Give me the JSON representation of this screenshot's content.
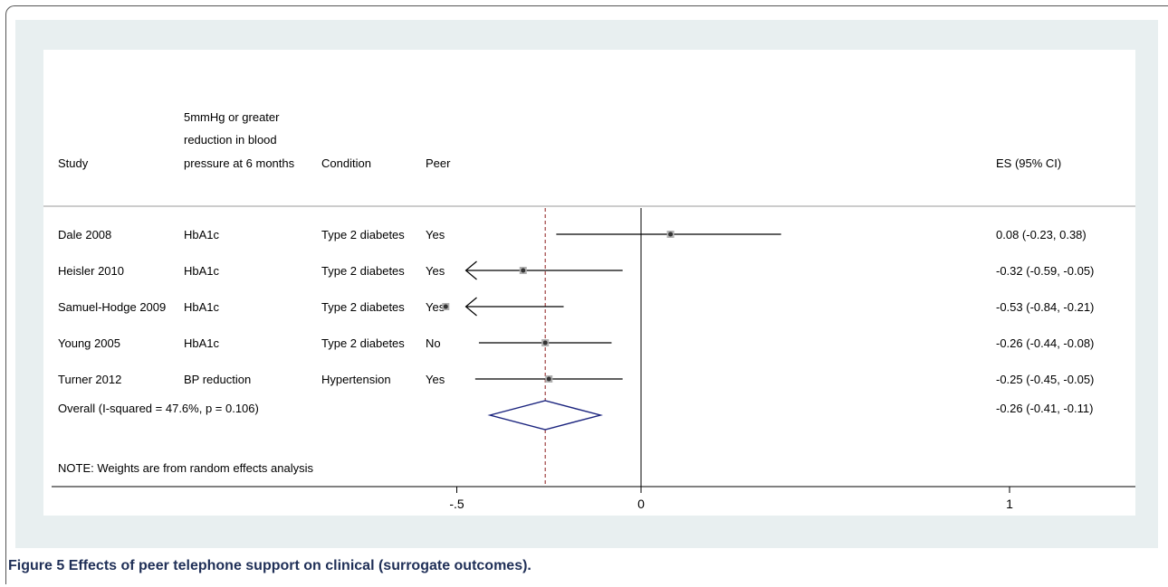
{
  "caption": {
    "figure_label": "Figure 5",
    "text": "Effects of peer telephone support on clinical (surrogate outcomes)."
  },
  "chart_data": {
    "type": "forest",
    "columns": {
      "study": "Study",
      "outcome_lines": [
        "5mmHg or greater",
        "reduction in blood",
        "pressure at 6 months"
      ],
      "condition": "Condition",
      "peer": "Peer",
      "es": "ES (95% CI)"
    },
    "studies": [
      {
        "name": "Dale 2008",
        "outcome": "HbA1c",
        "condition": "Type 2 diabetes",
        "peer": "Yes",
        "es": 0.08,
        "lo": -0.23,
        "hi": 0.38,
        "label": "0.08 (-0.23, 0.38)"
      },
      {
        "name": "Heisler 2010",
        "outcome": "HbA1c",
        "condition": "Type 2 diabetes",
        "peer": "Yes",
        "es": -0.32,
        "lo": -0.59,
        "hi": -0.05,
        "label": "-0.32 (-0.59, -0.05)"
      },
      {
        "name": "Samuel-Hodge 2009",
        "outcome": "HbA1c",
        "condition": "Type 2 diabetes",
        "peer": "Yes",
        "es": -0.53,
        "lo": -0.84,
        "hi": -0.21,
        "label": "-0.53 (-0.84, -0.21)"
      },
      {
        "name": "Young 2005",
        "outcome": "HbA1c",
        "condition": "Type 2 diabetes",
        "peer": "No",
        "es": -0.26,
        "lo": -0.44,
        "hi": -0.08,
        "label": "-0.26 (-0.44, -0.08)"
      },
      {
        "name": "Turner 2012",
        "outcome": "BP reduction",
        "condition": "Hypertension",
        "peer": "Yes",
        "es": -0.25,
        "lo": -0.45,
        "hi": -0.05,
        "label": "-0.25 (-0.45, -0.05)"
      }
    ],
    "overall": {
      "text": "Overall  (I-squared = 47.6%, p = 0.106)",
      "es": -0.26,
      "lo": -0.41,
      "hi": -0.11,
      "label": "-0.26 (-0.41, -0.11)"
    },
    "note": "NOTE: Weights are from random effects analysis",
    "x_ticks": [
      {
        "value": -0.5,
        "label": "-.5"
      },
      {
        "value": 0,
        "label": "0"
      },
      {
        "value": 1,
        "label": "1"
      }
    ],
    "axis_min_visible": -0.5,
    "colors": {
      "diamond": "#1a237e",
      "overall_line": "#8b1a1a",
      "marker": "#333333"
    }
  }
}
